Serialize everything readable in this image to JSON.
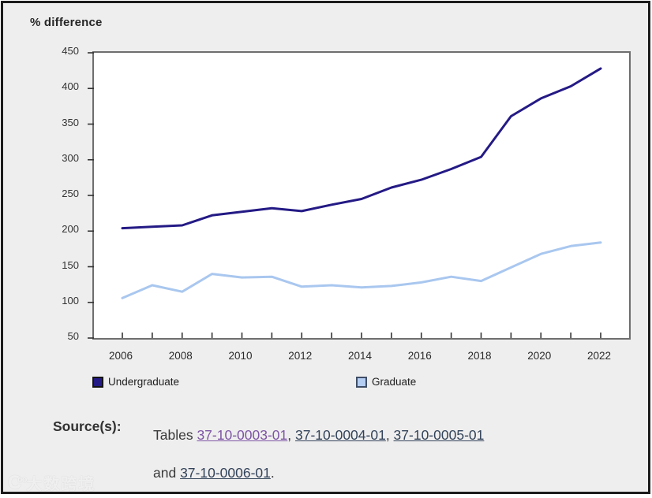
{
  "page": {
    "title": "% difference",
    "watermark_text": "大数跨境",
    "watermark_logo": "C",
    "watermark_logo_sup": "oo"
  },
  "legend": {
    "items": [
      {
        "label": "Undergraduate",
        "fill": "#241a85",
        "border": "#141414"
      },
      {
        "label": "Graduate",
        "fill": "#b4cdf3",
        "border": "#3f4e66"
      }
    ]
  },
  "source": {
    "label": "Source(s):",
    "prefix": "Tables ",
    "link1": "37-10-0003-01",
    "sep1": ", ",
    "link2": "37-10-0004-01",
    "sep2": ", ",
    "link3": "37-10-0005-01",
    "and_word": "and ",
    "link4": "37-10-0006-01",
    "period": "."
  },
  "chart_data": {
    "type": "line",
    "title": "% difference",
    "ylabel": "% difference",
    "xlabel": "",
    "grid": false,
    "legend_position": "bottom",
    "ylim": [
      50,
      450
    ],
    "ytick_step": 50,
    "x": [
      2006,
      2007,
      2008,
      2009,
      2010,
      2011,
      2012,
      2013,
      2014,
      2015,
      2016,
      2017,
      2018,
      2019,
      2020,
      2021,
      2022
    ],
    "xtick_label_years": [
      2006,
      2008,
      2010,
      2012,
      2014,
      2016,
      2018,
      2020,
      2022
    ],
    "series": [
      {
        "name": "Undergraduate",
        "color": "#241a85",
        "values": [
          204,
          206,
          208,
          222,
          227,
          232,
          228,
          237,
          245,
          261,
          272,
          287,
          304,
          361,
          386,
          403,
          428
        ]
      },
      {
        "name": "Graduate",
        "color": "#a9c7ef",
        "values": [
          106,
          124,
          115,
          140,
          135,
          136,
          122,
          124,
          121,
          123,
          128,
          136,
          130,
          149,
          168,
          179,
          184
        ]
      }
    ]
  }
}
